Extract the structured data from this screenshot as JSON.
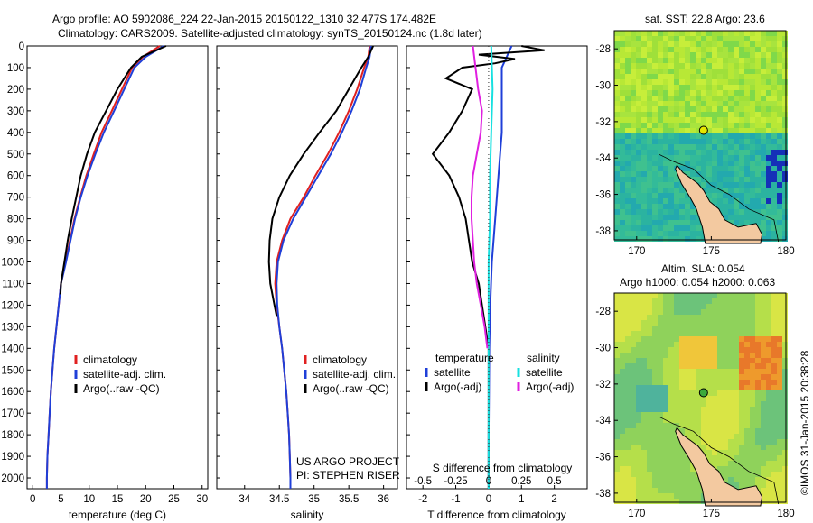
{
  "header": {
    "line1": "Argo profile: AO 5902086_224 22-Jan-2015 20150122_1310 32.477S 174.482E",
    "line2": "Climatology: CARS2009. Satellite-adjusted climatology: synTS_20150124.nc (1.8d later)"
  },
  "map_titles": {
    "sst": "sat. SST: 22.8 Argo: 23.6",
    "sla1": "Altim. SLA: 0.054",
    "sla2": "Argo h1000: 0.054 h2000: 0.063"
  },
  "credit": "©IMOS 31-Jan-2015 20:38:28",
  "project": {
    "line1": "US ARGO PROJECT",
    "line2": "PI: STEPHEN RISER"
  },
  "colors": {
    "climatology": "#e02020",
    "satellite": "#1f3fd8",
    "argo": "#000000",
    "sat_salinity": "#18e0e0",
    "argo_salinity": "#e020e0"
  },
  "chart_data": [
    {
      "type": "line",
      "xlabel": "temperature (deg C)",
      "ylim": [
        2050,
        0
      ],
      "xlim": [
        -1,
        31
      ],
      "xticks": [
        "0",
        "5",
        "10",
        "15",
        "20",
        "25",
        "30"
      ],
      "yticks": [
        "0",
        "100",
        "200",
        "300",
        "400",
        "500",
        "600",
        "700",
        "800",
        "900",
        "1000",
        "1100",
        "1200",
        "1300",
        "1400",
        "1500",
        "1600",
        "1700",
        "1800",
        "1900",
        "2000"
      ],
      "legend": [
        "climatology",
        "satellite-adj. clim.",
        "Argo(..raw -QC)"
      ],
      "series": [
        {
          "name": "climatology",
          "depth": [
            0,
            50,
            100,
            200,
            300,
            400,
            500,
            600,
            700,
            800,
            900,
            1000,
            1100,
            1200,
            1300,
            1400,
            1500,
            1600,
            1700,
            1800,
            1900,
            2000,
            2050
          ],
          "values": [
            22.5,
            19.5,
            17.6,
            15.8,
            14.0,
            12.2,
            10.8,
            9.5,
            8.4,
            7.4,
            6.6,
            5.8,
            5.0,
            4.6,
            4.2,
            3.8,
            3.5,
            3.2,
            3.0,
            2.8,
            2.6,
            2.5,
            2.5
          ]
        },
        {
          "name": "satellite-adj. clim.",
          "depth": [
            0,
            50,
            100,
            200,
            300,
            400,
            500,
            600,
            700,
            800,
            900,
            1000,
            1100,
            1200,
            1300,
            1400,
            1500,
            1600,
            1700,
            1800,
            1900,
            2000,
            2050
          ],
          "values": [
            23.2,
            20.0,
            18.0,
            16.2,
            14.4,
            12.6,
            11.1,
            9.7,
            8.5,
            7.5,
            6.7,
            5.9,
            5.0,
            4.6,
            4.2,
            3.8,
            3.5,
            3.2,
            3.0,
            2.8,
            2.6,
            2.5,
            2.5
          ]
        },
        {
          "name": "Argo(..raw -QC)",
          "depth": [
            0,
            50,
            100,
            200,
            300,
            400,
            500,
            600,
            700,
            800,
            900,
            1000,
            1100,
            1150
          ],
          "values": [
            23.6,
            19.3,
            17.4,
            15.0,
            13.0,
            11.0,
            9.6,
            8.5,
            7.7,
            6.9,
            6.2,
            5.6,
            5.0,
            4.9
          ]
        }
      ]
    },
    {
      "type": "line",
      "xlabel": "salinity",
      "ylim": [
        2050,
        0
      ],
      "xlim": [
        33.6,
        36.2
      ],
      "xticks": [
        "34",
        "34.5",
        "35",
        "35.5",
        "36"
      ],
      "legend": [
        "climatology",
        "satellite-adj. clim.",
        "Argo(..raw -QC)"
      ],
      "series": [
        {
          "name": "climatology",
          "depth": [
            0,
            50,
            100,
            200,
            300,
            400,
            500,
            600,
            700,
            800,
            900,
            1000,
            1100,
            1200,
            1300,
            1400,
            1500,
            1600,
            1700,
            1800,
            1900,
            2000,
            2050
          ],
          "values": [
            35.8,
            35.78,
            35.72,
            35.62,
            35.5,
            35.36,
            35.2,
            35.02,
            34.85,
            34.66,
            34.54,
            34.46,
            34.44,
            34.46,
            34.5,
            34.54,
            34.57,
            34.6,
            34.62,
            34.64,
            34.65,
            34.66,
            34.66
          ]
        },
        {
          "name": "satellite-adj. clim.",
          "depth": [
            0,
            50,
            100,
            200,
            300,
            400,
            500,
            600,
            700,
            800,
            900,
            1000,
            1100,
            1200,
            1300,
            1400,
            1500,
            1600,
            1700,
            1800,
            1900,
            2000,
            2050
          ],
          "values": [
            35.82,
            35.8,
            35.75,
            35.66,
            35.54,
            35.4,
            35.24,
            35.06,
            34.88,
            34.7,
            34.56,
            34.48,
            34.46,
            34.47,
            34.5,
            34.54,
            34.57,
            34.6,
            34.62,
            34.64,
            34.65,
            34.66,
            34.66
          ]
        },
        {
          "name": "Argo(..raw -QC)",
          "depth": [
            0,
            50,
            100,
            200,
            300,
            400,
            500,
            600,
            700,
            800,
            900,
            1000,
            1100,
            1200,
            1250
          ],
          "values": [
            35.85,
            35.78,
            35.68,
            35.5,
            35.32,
            35.08,
            34.85,
            34.65,
            34.5,
            34.4,
            34.36,
            34.35,
            34.37,
            34.43,
            34.46
          ]
        }
      ]
    },
    {
      "type": "line",
      "xlabel": "T difference from climatology",
      "xlabel_top": "S difference from climatology",
      "ylim": [
        2050,
        0
      ],
      "xlim": [
        -2.5,
        3
      ],
      "xticks": [
        "-2",
        "-1",
        "0",
        "1",
        "2"
      ],
      "xticks_top": [
        "-0.5",
        "-0.25",
        "0",
        "0.25",
        "0.5"
      ],
      "legend_left_title": "temperature",
      "legend_right_title": "salinity",
      "legend": [
        "satellite",
        "Argo(-adj)",
        "satellite",
        "Argo(-adj)"
      ],
      "series": [
        {
          "name": "satellite",
          "quantity": "temperature",
          "depth": [
            0,
            100,
            200,
            400,
            600,
            800,
            1000,
            1200,
            1400,
            1600,
            1800,
            2000,
            2050
          ],
          "values": [
            0.7,
            0.4,
            0.4,
            0.4,
            0.3,
            0.2,
            0.1,
            0.05,
            0.02,
            0.01,
            0.0,
            0.0,
            0.0
          ]
        },
        {
          "name": "Argo(-adj)",
          "quantity": "temperature",
          "depth": [
            0,
            20,
            40,
            60,
            80,
            100,
            150,
            200,
            300,
            400,
            500,
            600,
            700,
            800,
            900,
            1000,
            1100,
            1200,
            1300,
            1400,
            1600,
            1800,
            2000,
            2050
          ],
          "values": [
            1.0,
            1.7,
            -0.3,
            0.8,
            0.2,
            -0.8,
            -1.3,
            -0.5,
            -0.8,
            -1.2,
            -1.7,
            -1.2,
            -0.9,
            -0.7,
            -0.6,
            -0.5,
            -0.3,
            -0.2,
            -0.1,
            0.0,
            0.0,
            0.0,
            0.0,
            0.0
          ]
        },
        {
          "name": "satellite",
          "quantity": "salinity",
          "depth": [
            0,
            200,
            400,
            600,
            800,
            1000,
            1200,
            1400,
            1600,
            2050
          ],
          "values": [
            0.02,
            0.03,
            0.02,
            0.01,
            0.01,
            0.0,
            0.0,
            0.0,
            0.0,
            0.0
          ]
        },
        {
          "name": "Argo(-adj)",
          "quantity": "salinity",
          "depth": [
            0,
            100,
            200,
            300,
            400,
            500,
            600,
            700,
            800,
            900,
            1000,
            1100,
            1200,
            1300,
            1400
          ],
          "values": [
            -0.12,
            -0.1,
            -0.08,
            -0.05,
            -0.06,
            -0.09,
            -0.12,
            -0.13,
            -0.13,
            -0.12,
            -0.11,
            -0.09,
            -0.06,
            -0.03,
            -0.01
          ]
        }
      ]
    },
    {
      "type": "heatmap",
      "title": "sat. SST: 22.8 Argo: 23.6",
      "xticks": [
        "170",
        "175",
        "180"
      ],
      "yticks": [
        "-28",
        "-30",
        "-32",
        "-34",
        "-36",
        "-38"
      ],
      "float_position": [
        174.482,
        -32.477
      ]
    },
    {
      "type": "heatmap",
      "title": "Altim. SLA: 0.054",
      "subtitle": "Argo h1000: 0.054 h2000: 0.063",
      "xticks": [
        "170",
        "175",
        "180"
      ],
      "yticks": [
        "-28",
        "-30",
        "-32",
        "-34",
        "-36",
        "-38"
      ],
      "float_position": [
        174.482,
        -32.477
      ]
    }
  ]
}
